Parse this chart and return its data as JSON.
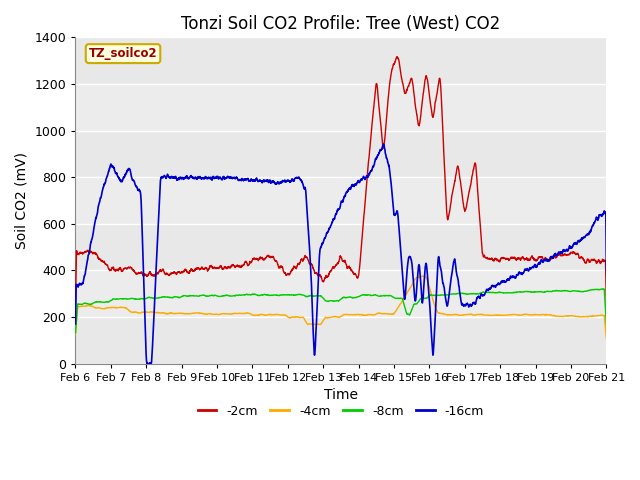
{
  "title": "Tonzi Soil CO2 Profile: Tree (West) CO2",
  "xlabel": "Time",
  "ylabel": "Soil CO2 (mV)",
  "ylim": [
    0,
    1400
  ],
  "colors": {
    "-2cm": "#cc0000",
    "-4cm": "#ffaa00",
    "-8cm": "#00cc00",
    "-16cm": "#0000cc"
  },
  "legend_label": "TZ_soilco2",
  "tick_labels": [
    "Feb 6",
    "Feb 7",
    "Feb 8",
    "Feb 9",
    "Feb 10",
    "Feb 11",
    "Feb 12",
    "Feb 13",
    "Feb 14",
    "Feb 15",
    "Feb 16",
    "Feb 17",
    "Feb 18",
    "Feb 19",
    "Feb 20",
    "Feb 21"
  ],
  "yticks": [
    0,
    200,
    400,
    600,
    800,
    1000,
    1200,
    1400
  ],
  "fig_bg": "#ffffff",
  "plot_bg": "#e8e8e8",
  "grid_color": "#ffffff",
  "label_fontsize": 10,
  "title_fontsize": 12,
  "tick_fontsize": 8
}
